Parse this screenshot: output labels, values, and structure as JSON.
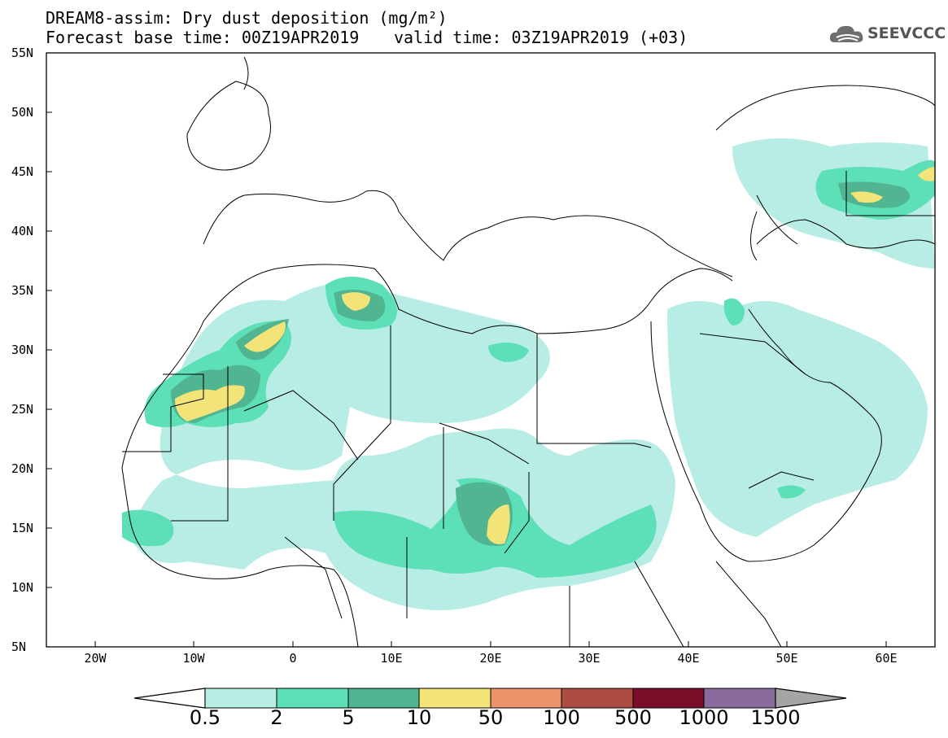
{
  "header": {
    "title": "DREAM8-assim: Dry dust deposition (mg/m²)",
    "base_time": "Forecast base time: 00Z19APR2019",
    "valid_time": "valid time: 03Z19APR2019 (+03)",
    "logo_text": "SEEVCCC",
    "logo_icon": "cloud-logo-icon"
  },
  "map": {
    "lon_range": [
      -25,
      65
    ],
    "lat_range": [
      5,
      55
    ],
    "lat_labels": [
      "55N",
      "50N",
      "45N",
      "40N",
      "35N",
      "30N",
      "25N",
      "20N",
      "15N",
      "10N",
      "5N"
    ],
    "lon_labels": [
      "20W",
      "10W",
      "0",
      "10E",
      "20E",
      "30E",
      "40E",
      "50E",
      "60E"
    ]
  },
  "colorbar": {
    "labels": [
      "0.5",
      "2",
      "5",
      "10",
      "50",
      "100",
      "500",
      "1000",
      "1500"
    ],
    "colors": [
      "#b7ede5",
      "#5ddfb7",
      "#52b592",
      "#f2e479",
      "#eb946b",
      "#ad4c40",
      "#7b0c2a",
      "#8a6b9e",
      "#a5a5a5"
    ],
    "under_color": "#ffffff"
  }
}
